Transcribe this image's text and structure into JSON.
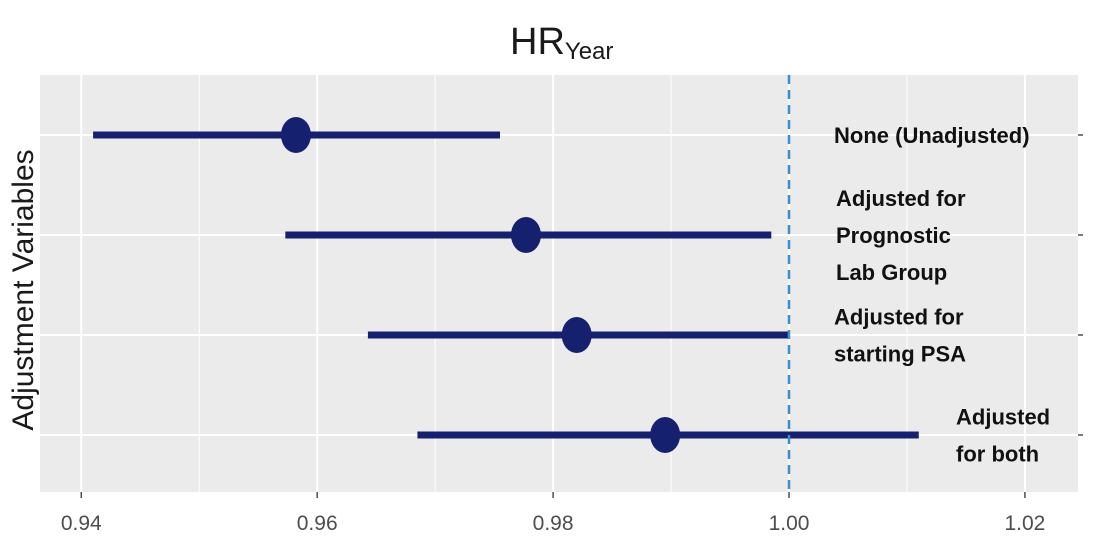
{
  "chart_data": {
    "type": "scatter",
    "title": {
      "main": "HR",
      "subscript": "Year"
    },
    "xlabel": "",
    "ylabel": "Adjustment Variables",
    "xlim": [
      0.9365,
      1.0245
    ],
    "x_ticks": [
      "0.94",
      "0.96",
      "0.98",
      "1.00",
      "1.02"
    ],
    "x_tick_values": [
      0.94,
      0.96,
      0.98,
      1.0,
      1.02
    ],
    "reference_line": {
      "x": 1.0,
      "style": "dashed",
      "color": "#3a8fd0"
    },
    "grid": true,
    "colors": {
      "panel": "#ebebeb",
      "grid": "#ffffff",
      "estimate": "#15206e"
    },
    "rows": [
      {
        "label_lines": [
          "None (Unadjusted)"
        ],
        "estimate": 0.9582,
        "lower": 0.941,
        "upper": 0.9755
      },
      {
        "label_lines": [
          "Adjusted for",
          "Prognostic",
          "Lab Group"
        ],
        "estimate": 0.9777,
        "lower": 0.9573,
        "upper": 0.9985
      },
      {
        "label_lines": [
          "Adjusted for",
          "starting PSA"
        ],
        "estimate": 0.982,
        "lower": 0.9643,
        "upper": 1.0
      },
      {
        "label_lines": [
          "Adjusted",
          "for both"
        ],
        "estimate": 0.9895,
        "lower": 0.9685,
        "upper": 1.011
      }
    ]
  }
}
